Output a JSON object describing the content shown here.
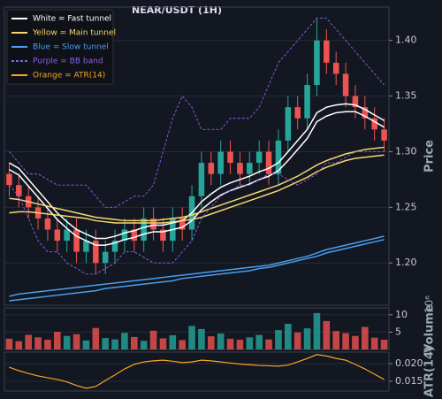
{
  "chart_data": [
    {
      "type": "candlestick",
      "title": "NEAR/USDT (1H)",
      "ylabel": "Price",
      "ylim": [
        1.162,
        1.43
      ],
      "yticks": [
        {
          "value": 1.2,
          "label": "1.20"
        },
        1.25,
        {
          "value": 1.3,
          "label": "1.30"
        },
        1.35,
        {
          "value": 1.4,
          "label": "1.40"
        }
      ],
      "grid": true,
      "up_color": "#26a69a",
      "down_color": "#ef5350",
      "open": [
        1.28,
        1.27,
        1.26,
        1.25,
        1.24,
        1.23,
        1.22,
        1.23,
        1.21,
        1.22,
        1.2,
        1.21,
        1.22,
        1.23,
        1.22,
        1.24,
        1.23,
        1.22,
        1.24,
        1.23,
        1.26,
        1.29,
        1.28,
        1.3,
        1.29,
        1.28,
        1.29,
        1.3,
        1.28,
        1.31,
        1.34,
        1.33,
        1.36,
        1.4,
        1.38,
        1.37,
        1.35,
        1.34,
        1.33,
        1.32
      ],
      "high": [
        1.29,
        1.28,
        1.27,
        1.26,
        1.25,
        1.24,
        1.24,
        1.24,
        1.23,
        1.23,
        1.22,
        1.23,
        1.24,
        1.24,
        1.25,
        1.25,
        1.24,
        1.25,
        1.25,
        1.27,
        1.3,
        1.3,
        1.31,
        1.31,
        1.3,
        1.3,
        1.31,
        1.31,
        1.32,
        1.35,
        1.35,
        1.37,
        1.42,
        1.41,
        1.39,
        1.38,
        1.36,
        1.35,
        1.34,
        1.33
      ],
      "low": [
        1.26,
        1.25,
        1.24,
        1.23,
        1.22,
        1.21,
        1.21,
        1.2,
        1.2,
        1.19,
        1.19,
        1.2,
        1.21,
        1.21,
        1.21,
        1.22,
        1.21,
        1.21,
        1.22,
        1.22,
        1.25,
        1.27,
        1.27,
        1.28,
        1.27,
        1.27,
        1.28,
        1.27,
        1.27,
        1.3,
        1.32,
        1.32,
        1.35,
        1.37,
        1.36,
        1.34,
        1.33,
        1.32,
        1.31,
        1.3
      ],
      "close": [
        1.27,
        1.26,
        1.25,
        1.24,
        1.23,
        1.22,
        1.23,
        1.21,
        1.22,
        1.2,
        1.21,
        1.22,
        1.23,
        1.22,
        1.24,
        1.23,
        1.22,
        1.24,
        1.23,
        1.26,
        1.29,
        1.28,
        1.3,
        1.29,
        1.28,
        1.29,
        1.3,
        1.28,
        1.31,
        1.34,
        1.33,
        1.36,
        1.4,
        1.38,
        1.37,
        1.35,
        1.34,
        1.33,
        1.32,
        1.31
      ],
      "bands": [
        {
          "name": "White = Fast tunnel",
          "color": "#ffffff",
          "dashed": false,
          "upper": [
            1.29,
            1.285,
            1.275,
            1.265,
            1.255,
            1.245,
            1.237,
            1.23,
            1.226,
            1.222,
            1.222,
            1.224,
            1.227,
            1.229,
            1.232,
            1.234,
            1.234,
            1.236,
            1.238,
            1.245,
            1.255,
            1.262,
            1.268,
            1.272,
            1.275,
            1.278,
            1.282,
            1.285,
            1.29,
            1.3,
            1.31,
            1.32,
            1.335,
            1.34,
            1.342,
            1.343,
            1.342,
            1.338,
            1.333,
            1.328
          ],
          "lower": [
            1.284,
            1.279,
            1.269,
            1.259,
            1.249,
            1.239,
            1.231,
            1.224,
            1.22,
            1.216,
            1.216,
            1.218,
            1.221,
            1.223,
            1.226,
            1.228,
            1.228,
            1.23,
            1.232,
            1.238,
            1.248,
            1.255,
            1.261,
            1.265,
            1.268,
            1.271,
            1.275,
            1.278,
            1.283,
            1.292,
            1.302,
            1.312,
            1.327,
            1.332,
            1.335,
            1.336,
            1.336,
            1.332,
            1.327,
            1.322
          ]
        },
        {
          "name": "Yellow = Main tunnel",
          "color": "#f5d76e",
          "dashed": false,
          "upper": [
            1.258,
            1.257,
            1.255,
            1.253,
            1.251,
            1.249,
            1.247,
            1.245,
            1.243,
            1.241,
            1.24,
            1.239,
            1.238,
            1.238,
            1.238,
            1.238,
            1.239,
            1.24,
            1.241,
            1.243,
            1.246,
            1.249,
            1.252,
            1.255,
            1.258,
            1.261,
            1.264,
            1.267,
            1.27,
            1.274,
            1.278,
            1.283,
            1.288,
            1.292,
            1.295,
            1.298,
            1.3,
            1.302,
            1.303,
            1.304
          ],
          "lower": [
            1.245,
            1.246,
            1.246,
            1.245,
            1.244,
            1.243,
            1.242,
            1.241,
            1.24,
            1.238,
            1.237,
            1.236,
            1.236,
            1.236,
            1.236,
            1.236,
            1.236,
            1.237,
            1.238,
            1.239,
            1.241,
            1.244,
            1.247,
            1.25,
            1.253,
            1.256,
            1.259,
            1.262,
            1.265,
            1.269,
            1.273,
            1.277,
            1.282,
            1.286,
            1.289,
            1.292,
            1.294,
            1.295,
            1.296,
            1.297
          ]
        },
        {
          "name": "Blue = Slow tunnel",
          "color": "#4a9eed",
          "dashed": false,
          "upper": [
            1.17,
            1.172,
            1.173,
            1.174,
            1.175,
            1.176,
            1.177,
            1.178,
            1.179,
            1.18,
            1.181,
            1.182,
            1.183,
            1.184,
            1.185,
            1.186,
            1.187,
            1.188,
            1.189,
            1.19,
            1.191,
            1.192,
            1.193,
            1.194,
            1.195,
            1.196,
            1.197,
            1.198,
            1.2,
            1.202,
            1.204,
            1.206,
            1.209,
            1.212,
            1.214,
            1.216,
            1.218,
            1.22,
            1.222,
            1.224
          ],
          "lower": [
            1.166,
            1.167,
            1.168,
            1.169,
            1.17,
            1.171,
            1.172,
            1.173,
            1.174,
            1.175,
            1.177,
            1.178,
            1.179,
            1.18,
            1.181,
            1.182,
            1.183,
            1.184,
            1.186,
            1.187,
            1.188,
            1.189,
            1.19,
            1.191,
            1.192,
            1.193,
            1.195,
            1.196,
            1.198,
            1.2,
            1.202,
            1.204,
            1.206,
            1.209,
            1.211,
            1.213,
            1.215,
            1.217,
            1.219,
            1.221
          ]
        },
        {
          "name": "Purple = BB band",
          "color": "#8a63e8",
          "dashed": true,
          "upper": [
            1.3,
            1.29,
            1.28,
            1.28,
            1.275,
            1.27,
            1.27,
            1.27,
            1.27,
            1.26,
            1.25,
            1.25,
            1.255,
            1.26,
            1.26,
            1.27,
            1.3,
            1.33,
            1.35,
            1.34,
            1.32,
            1.32,
            1.32,
            1.33,
            1.33,
            1.33,
            1.34,
            1.36,
            1.38,
            1.39,
            1.4,
            1.41,
            1.42,
            1.42,
            1.41,
            1.4,
            1.39,
            1.38,
            1.37,
            1.36
          ],
          "lower": [
            1.27,
            1.26,
            1.24,
            1.22,
            1.21,
            1.21,
            1.2,
            1.195,
            1.19,
            1.19,
            1.195,
            1.2,
            1.21,
            1.21,
            1.205,
            1.2,
            1.2,
            1.2,
            1.21,
            1.22,
            1.24,
            1.25,
            1.26,
            1.265,
            1.27,
            1.27,
            1.275,
            1.28,
            1.28,
            1.275,
            1.27,
            1.275,
            1.28,
            1.29,
            1.29,
            1.295,
            1.3,
            1.3,
            1.3,
            1.3
          ]
        }
      ]
    },
    {
      "type": "bar",
      "ylabel": "Volume",
      "scale_label": "10⁶",
      "ylim": [
        0,
        12
      ],
      "yticks": [
        5,
        10
      ],
      "grid": true,
      "values": [
        3.1,
        2.4,
        4.2,
        3.5,
        2.8,
        5.1,
        3.9,
        4.4,
        2.6,
        6.2,
        3.3,
        2.9,
        4.8,
        3.6,
        2.5,
        5.4,
        3.2,
        4.1,
        2.7,
        6.8,
        5.9,
        3.8,
        4.6,
        3.1,
        2.8,
        3.5,
        4.2,
        2.9,
        5.6,
        7.4,
        4.9,
        6.1,
        10.5,
        8.2,
        5.3,
        4.7,
        3.9,
        6.5,
        3.4,
        2.8
      ]
    },
    {
      "type": "line",
      "ylabel": "ATR(14)",
      "ylim": [
        0.0122,
        0.0233
      ],
      "yticks": [
        0.015,
        {
          "value": 0.02,
          "label": "0.020"
        }
      ],
      "grid": true,
      "series": [
        {
          "name": "Orange = ATR(14)",
          "color": "#f5a623",
          "values": [
            0.019,
            0.018,
            0.0172,
            0.0165,
            0.016,
            0.0155,
            0.0148,
            0.0138,
            0.013,
            0.0135,
            0.0152,
            0.0168,
            0.0185,
            0.0198,
            0.0205,
            0.0208,
            0.021,
            0.0207,
            0.0203,
            0.0205,
            0.021,
            0.0208,
            0.0205,
            0.0202,
            0.0199,
            0.0197,
            0.0195,
            0.0194,
            0.0193,
            0.0196,
            0.0205,
            0.0215,
            0.0226,
            0.0222,
            0.0215,
            0.021,
            0.0198,
            0.0185,
            0.017,
            0.0155
          ]
        }
      ]
    }
  ]
}
